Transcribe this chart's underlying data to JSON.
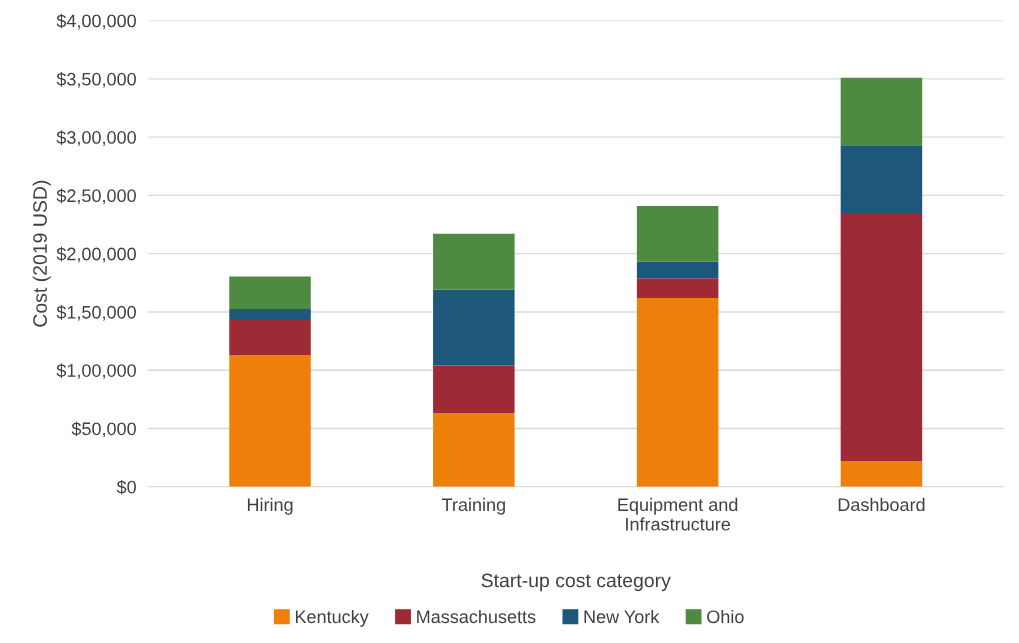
{
  "chart_data": {
    "type": "bar",
    "stacked": true,
    "xlabel": "Start-up cost category",
    "ylabel": "Cost (2019 USD)",
    "categories": [
      "Hiring",
      "Training",
      "Equipment and\nInfrastructure",
      "Dashboard"
    ],
    "series": [
      {
        "name": "Kentucky",
        "color": "#ef7f0b",
        "values": [
          113000,
          63000,
          162000,
          22000
        ]
      },
      {
        "name": "Massachusetts",
        "color": "#9e2a36",
        "values": [
          30000,
          41000,
          17000,
          212000
        ]
      },
      {
        "name": "New York",
        "color": "#1d587b",
        "values": [
          9500,
          65000,
          14000,
          59000
        ]
      },
      {
        "name": "Ohio",
        "color": "#4f8a43",
        "values": [
          28000,
          48000,
          48000,
          58000
        ]
      }
    ],
    "ylim": [
      0,
      400000
    ],
    "yticks": [
      {
        "value": 0,
        "label": "$0"
      },
      {
        "value": 50000,
        "label": "$50,000"
      },
      {
        "value": 100000,
        "label": "$1,00,000"
      },
      {
        "value": 150000,
        "label": "$1,50,000"
      },
      {
        "value": 200000,
        "label": "$2,00,000"
      },
      {
        "value": 250000,
        "label": "$2,50,000"
      },
      {
        "value": 300000,
        "label": "$3,00,000"
      },
      {
        "value": 350000,
        "label": "$3,50,000"
      },
      {
        "value": 400000,
        "label": "$4,00,000"
      }
    ],
    "grid": "y",
    "legend": "bottom"
  }
}
